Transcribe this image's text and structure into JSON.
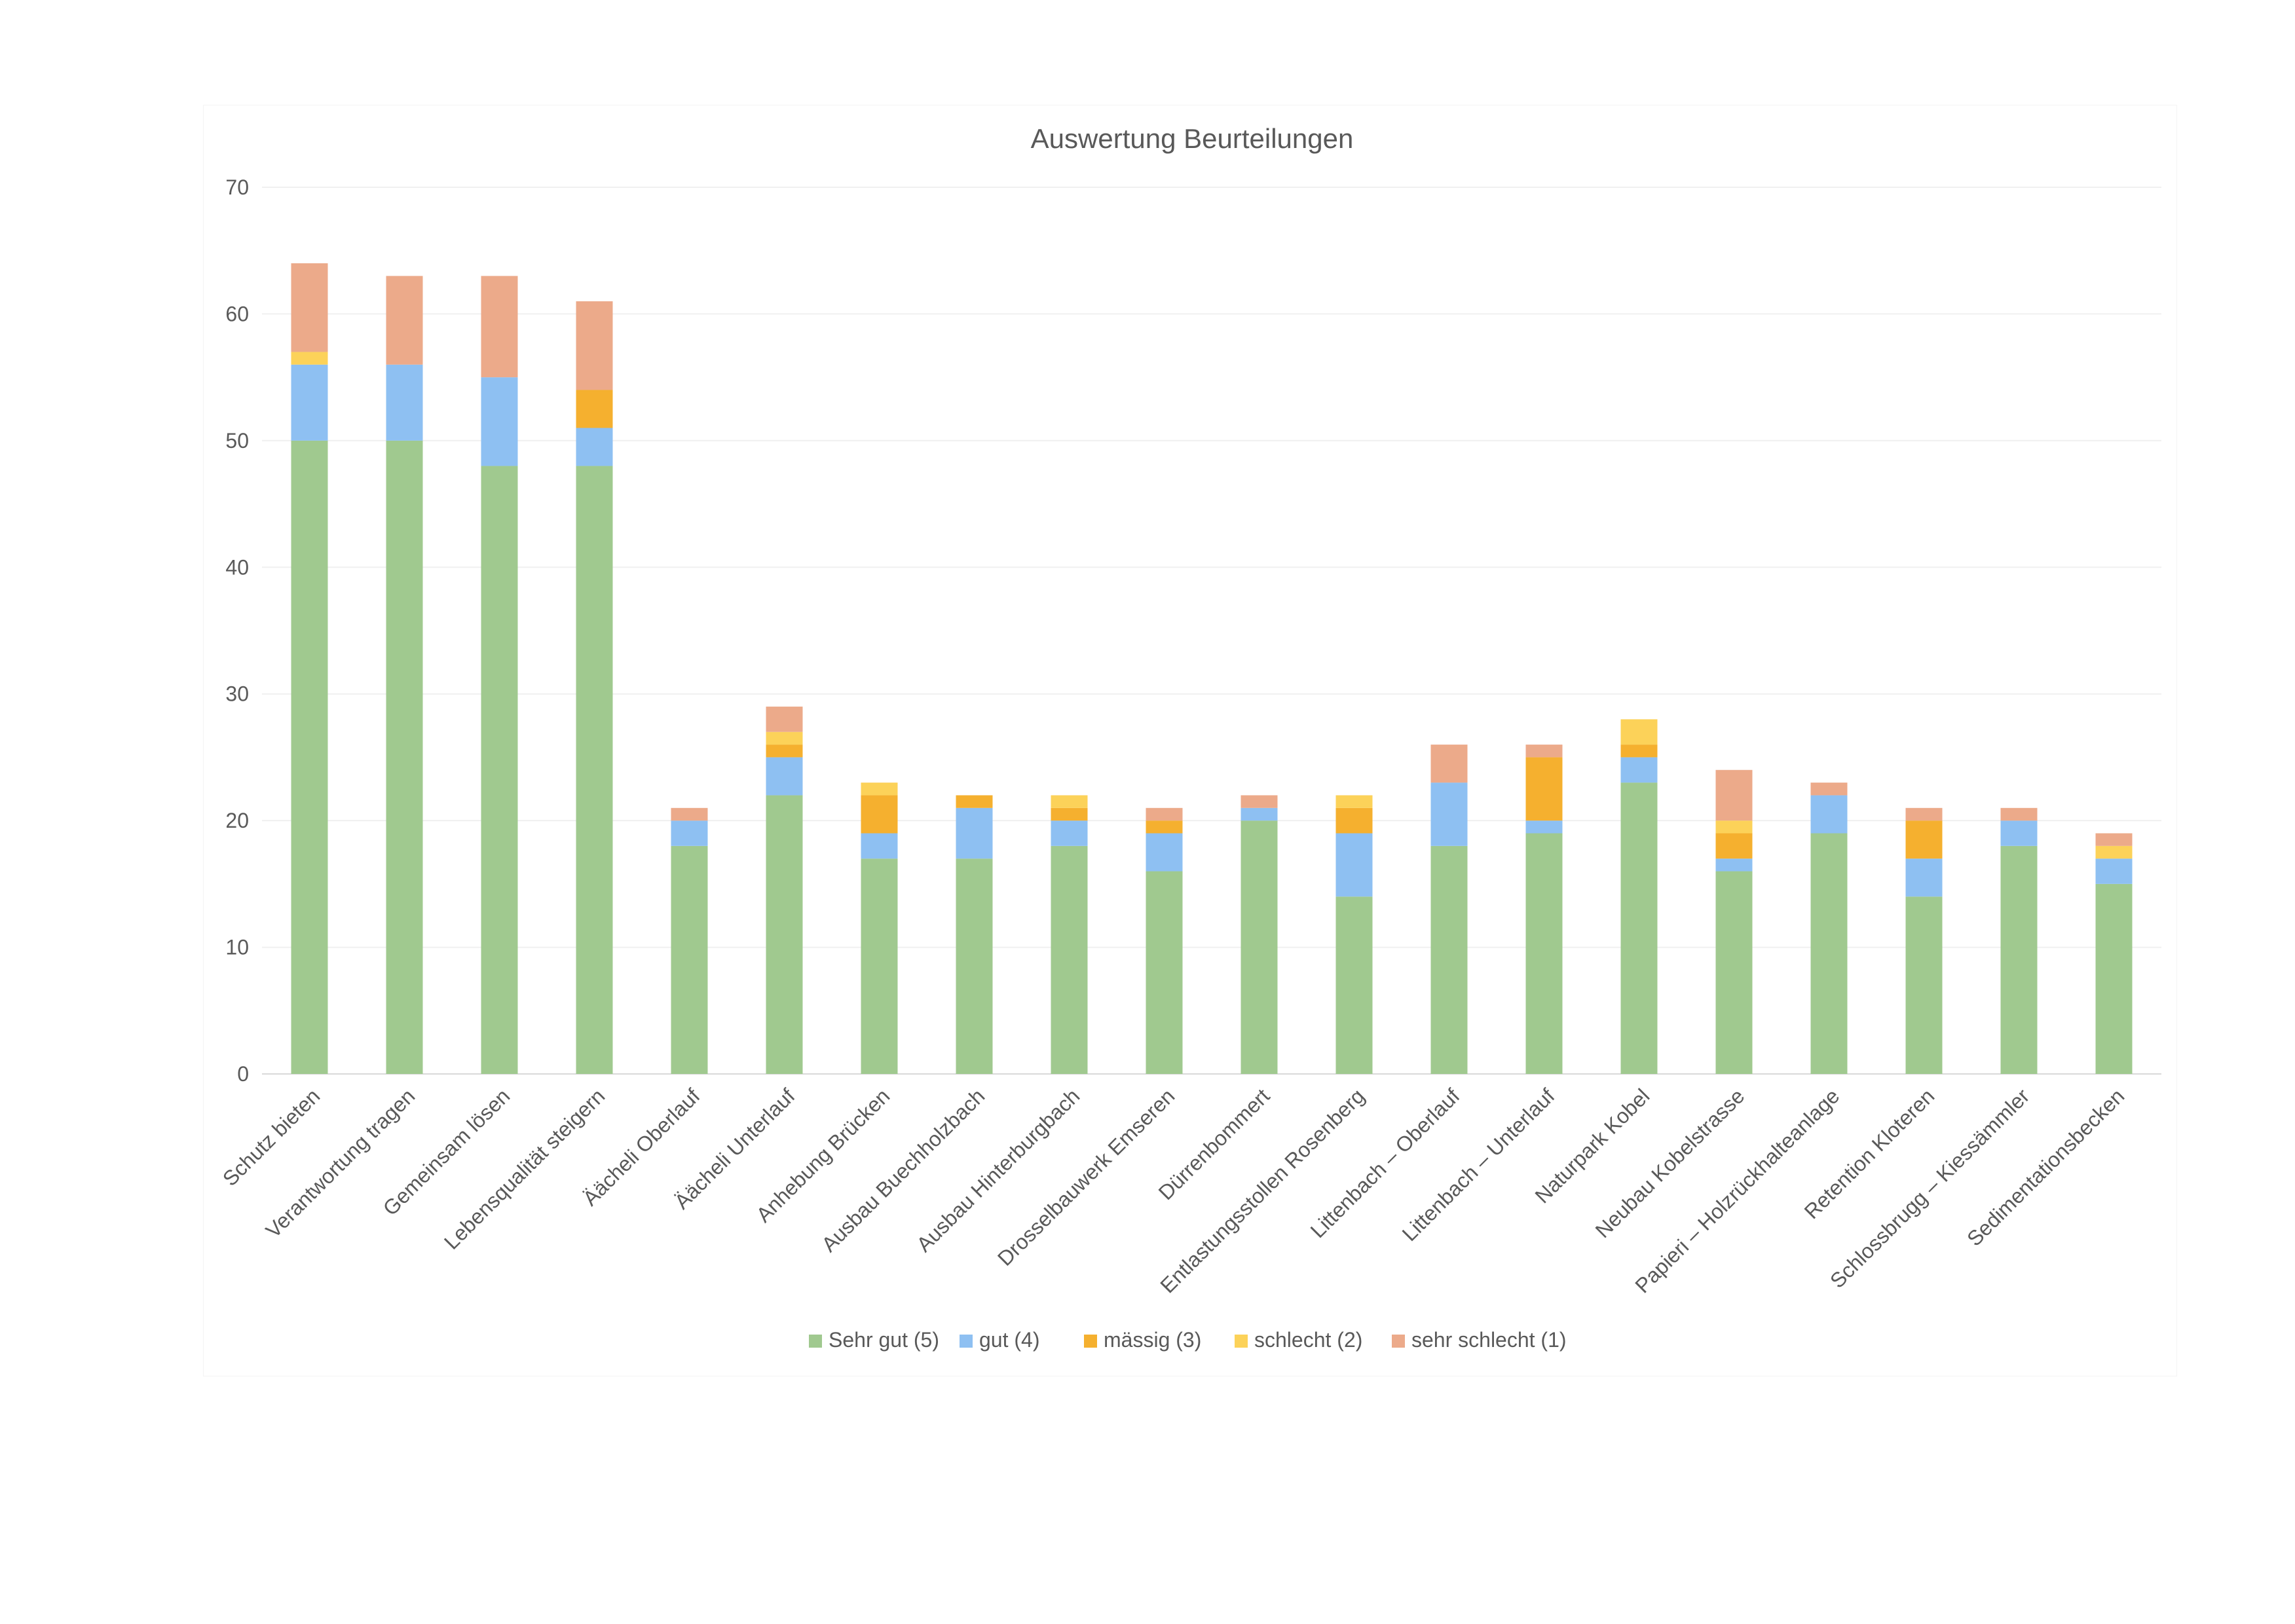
{
  "chart_data": {
    "type": "bar",
    "stacked": true,
    "title": "Auswertung Beurteilungen",
    "xlabel": "",
    "ylabel": "",
    "ylim": [
      0,
      70
    ],
    "yticks": [
      0,
      10,
      20,
      30,
      40,
      50,
      60,
      70
    ],
    "grid": true,
    "legend_position": "bottom",
    "categories": [
      "Schutz bieten",
      "Verantwortung tragen",
      "Gemeinsam lösen",
      "Lebensqualität steigern",
      "Äächeli Oberlauf",
      "Äächeli Unterlauf",
      "Anhebung Brücken",
      "Ausbau Buechholzbach",
      "Ausbau Hinterburgbach",
      "Drosselbauwerk Emseren",
      "Dürrenbommert",
      "Entlastungsstollen Rosenberg",
      "Littenbach – Oberlauf",
      "Littenbach – Unterlauf",
      "Naturpark Kobel",
      "Neubau Kobelstrasse",
      "Papieri – Holzrückhalteanlage",
      "Retention Kloteren",
      "Schlossbrugg – Kiessämmler",
      "Sedimentationsbecken"
    ],
    "series": [
      {
        "name": "Sehr gut (5)",
        "color": "#a0c98f",
        "values": [
          50,
          50,
          48,
          48,
          18,
          22,
          17,
          17,
          18,
          16,
          20,
          14,
          18,
          19,
          23,
          16,
          19,
          14,
          18,
          15
        ]
      },
      {
        "name": "gut (4)",
        "color": "#8ec0f2",
        "values": [
          6,
          6,
          7,
          3,
          2,
          3,
          2,
          4,
          2,
          3,
          1,
          5,
          5,
          1,
          2,
          1,
          3,
          3,
          2,
          2
        ]
      },
      {
        "name": "mässig (3)",
        "color": "#f5b02f",
        "values": [
          0,
          0,
          0,
          3,
          0,
          1,
          3,
          1,
          1,
          1,
          0,
          2,
          0,
          5,
          1,
          2,
          0,
          3,
          0,
          0
        ]
      },
      {
        "name": "schlecht (2)",
        "color": "#fcd259",
        "values": [
          1,
          0,
          0,
          0,
          0,
          1,
          1,
          0,
          1,
          0,
          0,
          1,
          0,
          0,
          2,
          1,
          0,
          0,
          0,
          1
        ]
      },
      {
        "name": "sehr schlecht (1)",
        "color": "#ecaa8a",
        "values": [
          7,
          7,
          8,
          7,
          1,
          2,
          0,
          0,
          0,
          1,
          1,
          0,
          3,
          1,
          0,
          4,
          1,
          1,
          1,
          1
        ]
      }
    ]
  }
}
